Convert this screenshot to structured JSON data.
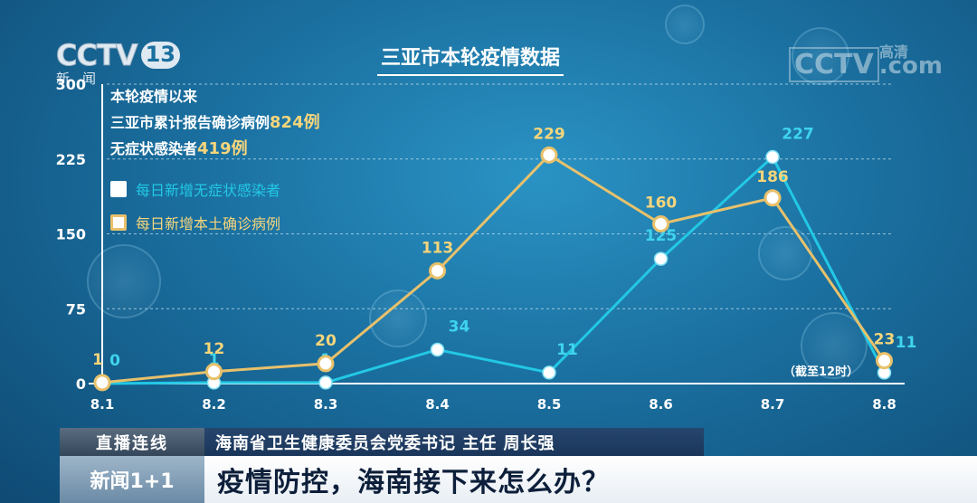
{
  "logo": {
    "brand": "CCTV",
    "channel": "13",
    "sub": "新闻",
    "hd_brand": "CCTV",
    "hd_tag": "高清",
    "hd_suffix": ".com"
  },
  "summary": {
    "line1": "本轮疫情以来",
    "line2_prefix": "三亚市累计报告确诊病例",
    "line2_value": "824例",
    "line3_prefix": "无症状感染者",
    "line3_value": "419例"
  },
  "cutoff_note": "（截至12时）",
  "colors": {
    "asymptomatic": "#22c8e5",
    "confirmed": "#e8c16b",
    "grid": "#d0e8f4"
  },
  "chart_data": {
    "type": "line",
    "title": "三亚市本轮疫情数据",
    "xlabel": "",
    "ylabel": "",
    "categories": [
      "8.1",
      "8.2",
      "8.3",
      "8.4",
      "8.5",
      "8.6",
      "8.7",
      "8.8"
    ],
    "yticks": [
      0,
      75,
      150,
      225,
      300
    ],
    "ylim": [
      0,
      300
    ],
    "grid": true,
    "series": [
      {
        "name": "每日新增无症状感染者",
        "color": "#22c8e5",
        "values": [
          0,
          1,
          1,
          34,
          11,
          125,
          227,
          11
        ]
      },
      {
        "name": "每日新增本土确诊病例",
        "color": "#e8c16b",
        "values": [
          1,
          12,
          20,
          113,
          229,
          160,
          186,
          23
        ]
      }
    ]
  },
  "banner": {
    "tag": "直播连线",
    "speaker": "海南省卫生健康委员会党委书记 主任 周长强",
    "program": "新闻1+1",
    "headline": "疫情防控，海南接下来怎么办？"
  }
}
